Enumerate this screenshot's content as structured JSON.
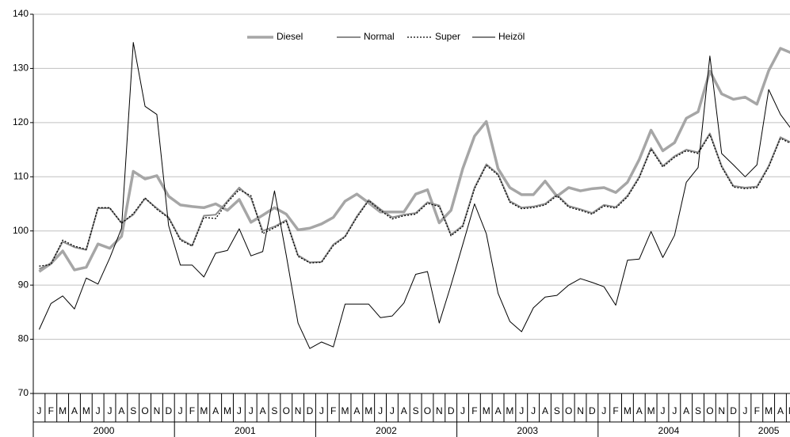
{
  "chart_data": {
    "type": "line",
    "categories": [
      "J",
      "F",
      "M",
      "A",
      "M",
      "J",
      "J",
      "A",
      "S",
      "O",
      "N",
      "D",
      "J",
      "F",
      "M",
      "A",
      "M",
      "J",
      "J",
      "A",
      "S",
      "O",
      "N",
      "D",
      "J",
      "F",
      "M",
      "A",
      "M",
      "J",
      "J",
      "A",
      "S",
      "O",
      "N",
      "D",
      "J",
      "F",
      "M",
      "A",
      "M",
      "J",
      "J",
      "A",
      "S",
      "O",
      "N",
      "D",
      "J",
      "F",
      "M",
      "A",
      "M",
      "J",
      "J",
      "A",
      "S",
      "O",
      "N",
      "D",
      "J",
      "F",
      "M",
      "A",
      "M"
    ],
    "years": [
      "2000",
      "2001",
      "2002",
      "2003",
      "2004",
      "2005"
    ],
    "ylim": [
      70,
      140
    ],
    "yticks": [
      70,
      80,
      90,
      100,
      110,
      120,
      130,
      140
    ],
    "grid": true,
    "legend": "top",
    "series": [
      {
        "name": "Diesel",
        "color": "#a6a6a6",
        "values": [
          92.5,
          94,
          96.3,
          92.8,
          93.3,
          97.6,
          96.8,
          99,
          111,
          109.6,
          110.2,
          106.4,
          104.8,
          104.5,
          104.3,
          105,
          103.8,
          105.8,
          101.6,
          102.9,
          104.3,
          103.1,
          100.2,
          100.5,
          101.3,
          102.5,
          105.5,
          106.8,
          105.2,
          103.5,
          103.5,
          103.5,
          106.8,
          107.6,
          101.5,
          103.8,
          111.5,
          117.5,
          120.2,
          111.5,
          108,
          106.7,
          106.7,
          109.2,
          106.4,
          108,
          107.4,
          107.8,
          108,
          107.1,
          109,
          113.2,
          118.6,
          114.8,
          116.3,
          120.8,
          122,
          129.5,
          125.3,
          124.3,
          124.7,
          123.4,
          129.6,
          133.7,
          132.8
        ]
      },
      {
        "name": "Normal",
        "color": "#8c8c8c",
        "values": [
          93,
          94,
          98,
          97,
          96.5,
          104.2,
          104.2,
          101.5,
          103,
          106,
          104.2,
          102.5,
          98.5,
          97.3,
          102.8,
          103,
          105.5,
          108,
          106.1,
          100,
          100.8,
          102,
          95.5,
          94.2,
          94.3,
          97.5,
          99,
          102.7,
          105.7,
          104,
          102.5,
          103,
          103.3,
          105.3,
          104.7,
          99.3,
          101,
          108,
          112.3,
          110.5,
          105.5,
          104.3,
          104.5,
          105,
          106.7,
          104.6,
          104,
          103.3,
          104.8,
          104.4,
          106.5,
          110,
          115.3,
          112,
          113.8,
          115,
          114.5,
          118,
          112,
          108.3,
          108,
          108.2,
          112,
          117.3,
          116.2
        ]
      },
      {
        "name": "Super",
        "color": "#000000",
        "values": [
          93.5,
          93.8,
          98.3,
          97.2,
          96.6,
          104.3,
          104.3,
          101.4,
          103.2,
          106.1,
          104,
          102.4,
          98.3,
          97.2,
          102.5,
          102.3,
          105.3,
          107.6,
          106.5,
          99.5,
          100.6,
          101.8,
          95.3,
          94.1,
          94.2,
          97.3,
          98.9,
          102.5,
          105.6,
          103.8,
          102.2,
          102.8,
          103.1,
          105.1,
          104.5,
          99.1,
          100.8,
          107.8,
          112.1,
          110.3,
          105.3,
          104.1,
          104.3,
          104.8,
          106.5,
          104.4,
          103.8,
          103.1,
          104.6,
          104.2,
          106.3,
          109.8,
          115.1,
          111.8,
          113.6,
          114.8,
          114.3,
          117.8,
          111.8,
          108.1,
          107.8,
          108,
          111.8,
          117.1,
          116
        ]
      },
      {
        "name": "Heizöl",
        "color": "#000000",
        "values": [
          81.8,
          86.6,
          88,
          85.6,
          91.3,
          90.2,
          95,
          100.5,
          134.8,
          123,
          121.5,
          101,
          93.7,
          93.7,
          91.5,
          95.9,
          96.4,
          100.4,
          95.4,
          96.2,
          107.4,
          95.5,
          83,
          78.3,
          79.5,
          78.6,
          86.5,
          86.5,
          86.5,
          84,
          84.3,
          86.7,
          92,
          92.5,
          83,
          90,
          97.5,
          105,
          99.5,
          88.5,
          83.3,
          81.4,
          85.8,
          87.8,
          88.1,
          90,
          91.2,
          90.5,
          89.7,
          86.3,
          94.6,
          94.8,
          99.9,
          95.1,
          99.2,
          109,
          111.7,
          132.3,
          114.3,
          112.2,
          110,
          112.2,
          126.1,
          121.5,
          118.6
        ]
      }
    ]
  }
}
